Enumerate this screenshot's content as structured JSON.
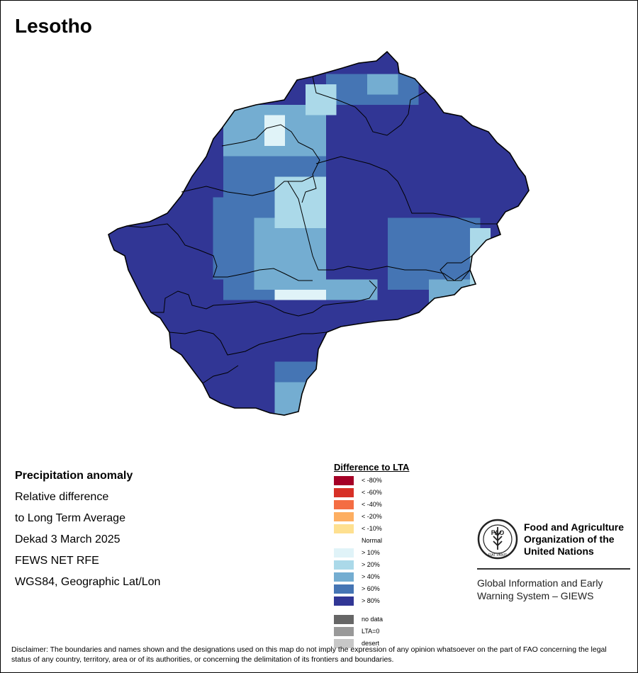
{
  "title": "Lesotho",
  "info_lines": [
    "Precipitation anomaly",
    "Relative difference",
    "to Long Term Average",
    "Dekad 3 March 2025",
    "FEWS NET RFE",
    "WGS84, Geographic Lat/Lon"
  ],
  "legend": {
    "title": "Difference to LTA",
    "classes": [
      {
        "label": "< -80%",
        "color": "#a50026"
      },
      {
        "label": "< -60%",
        "color": "#d73027"
      },
      {
        "label": "< -40%",
        "color": "#f46d43"
      },
      {
        "label": "< -20%",
        "color": "#fdae61"
      },
      {
        "label": "< -10%",
        "color": "#fee090"
      },
      {
        "label": "Normal",
        "color": "#ffffff"
      },
      {
        "label": "> 10%",
        "color": "#e0f3f8"
      },
      {
        "label": "> 20%",
        "color": "#abd9e9"
      },
      {
        "label": "> 40%",
        "color": "#74add1"
      },
      {
        "label": "> 60%",
        "color": "#4575b4"
      },
      {
        "label": "> 80%",
        "color": "#313695"
      }
    ],
    "extra": [
      {
        "label": "no data",
        "color": "#666666"
      },
      {
        "label": "LTA=0",
        "color": "#999999"
      },
      {
        "label": "desert",
        "color": "#c8c8c8"
      }
    ]
  },
  "org": {
    "name_lines": [
      "Food and Agriculture",
      "Organization of the",
      "United Nations"
    ],
    "logo_text": "FAO",
    "motto": "FIAT PANIS",
    "system_lines": [
      "Global Information and Early",
      "Warning System – GIEWS"
    ]
  },
  "disclaimer": "Disclaimer: The boundaries and names shown and the designations used on this map do not imply the expression of any opinion whatsoever on the part of FAO concerning the legal status of any country, territory, area or of its authorities, or concerning the delimitation of its frontiers and boundaries.",
  "icons": {
    "logo": "fao-wheat-logo-icon"
  },
  "map_colors": {
    "c80": "#313695",
    "c60": "#4575b4",
    "c40": "#74add1",
    "c20": "#abd9e9",
    "c10": "#e0f3f8"
  }
}
